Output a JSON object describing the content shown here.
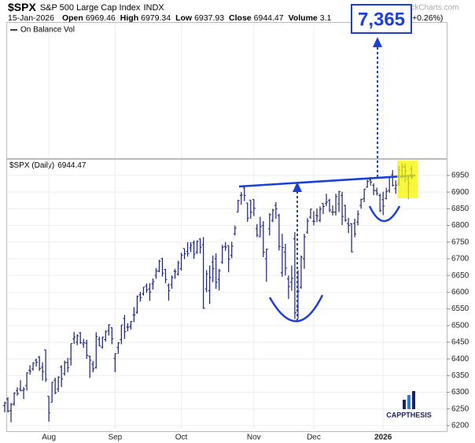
{
  "chart_data": {
    "type": "ohlc",
    "title": "$SPX",
    "subtitle": "S&P 500 Large Cap Index",
    "exchange": "INDX",
    "date": "15-Jan-2026",
    "quote_labels": [
      "Open",
      "High",
      "Low",
      "Close",
      "Volume"
    ],
    "volume": "3.1",
    "change": "+0.26%)",
    "watermark": "©StockCharts.com",
    "indicator": "On Balance Vol",
    "series_name": "$SPX (Daily)",
    "annotation": "7,365",
    "logo": "CAPPTHESIS",
    "color": "#1b2266",
    "ylim": [
      6181,
      6997
    ],
    "yticks": [
      6200,
      6250,
      6300,
      6350,
      6400,
      6450,
      6500,
      6550,
      6600,
      6650,
      6700,
      6750,
      6800,
      6850,
      6900,
      6950
    ],
    "grid": true,
    "categories": [
      null,
      null,
      null,
      null,
      null,
      null,
      null,
      null,
      null,
      null,
      null,
      null,
      null,
      null,
      "Aug",
      null,
      null,
      null,
      null,
      null,
      null,
      null,
      null,
      null,
      null,
      null,
      null,
      null,
      null,
      null,
      null,
      null,
      null,
      null,
      null,
      "Sep",
      null,
      null,
      null,
      null,
      null,
      null,
      null,
      null,
      null,
      null,
      null,
      null,
      null,
      null,
      null,
      null,
      null,
      null,
      null,
      null,
      "Oct",
      null,
      null,
      null,
      null,
      null,
      null,
      null,
      null,
      null,
      null,
      null,
      null,
      null,
      null,
      null,
      null,
      null,
      null,
      null,
      null,
      null,
      null,
      "Nov",
      null,
      null,
      null,
      null,
      null,
      null,
      null,
      null,
      null,
      null,
      null,
      null,
      null,
      null,
      null,
      null,
      null,
      null,
      "Dec",
      null,
      null,
      null,
      null,
      null,
      null,
      null,
      null,
      null,
      null,
      null,
      null,
      null,
      null,
      null,
      null,
      null,
      null,
      null,
      null,
      null,
      "2026",
      null,
      null,
      null,
      null,
      null,
      null,
      null,
      null,
      null
    ],
    "values": [
      [
        6260,
        6272,
        6240,
        6268
      ],
      [
        6280,
        6285,
        6240,
        6243
      ],
      [
        6245,
        6268,
        6210,
        6263
      ],
      [
        6265,
        6300,
        6260,
        6297
      ],
      [
        6305,
        6315,
        6290,
        6296
      ],
      [
        6310,
        6336,
        6303,
        6305
      ],
      [
        6306,
        6316,
        6280,
        6309
      ],
      [
        6320,
        6360,
        6305,
        6358
      ],
      [
        6366,
        6381,
        6353,
        6363
      ],
      [
        6370,
        6390,
        6365,
        6388
      ],
      [
        6396,
        6401,
        6377,
        6390
      ],
      [
        6405,
        6409,
        6364,
        6371
      ],
      [
        6375,
        6390,
        6335,
        6362
      ],
      [
        6427,
        6428,
        6331,
        6339
      ],
      [
        6288,
        6288,
        6212,
        6238
      ],
      [
        6270,
        6331,
        6270,
        6330
      ],
      [
        6336,
        6344,
        6294,
        6299
      ],
      [
        6310,
        6348,
        6301,
        6345
      ],
      [
        6376,
        6381,
        6316,
        6340
      ],
      [
        6356,
        6395,
        6350,
        6389
      ],
      [
        6389,
        6403,
        6360,
        6374
      ],
      [
        6400,
        6446,
        6380,
        6446
      ],
      [
        6460,
        6481,
        6445,
        6466
      ],
      [
        6450,
        6474,
        6441,
        6469
      ],
      [
        6478,
        6481,
        6445,
        6449
      ],
      [
        6445,
        6460,
        6433,
        6449
      ],
      [
        6447,
        6457,
        6400,
        6411
      ],
      [
        6408,
        6410,
        6343,
        6396
      ],
      [
        6384,
        6394,
        6360,
        6370
      ],
      [
        6374,
        6480,
        6371,
        6467
      ],
      [
        6459,
        6467,
        6438,
        6439
      ],
      [
        6435,
        6467,
        6431,
        6465
      ],
      [
        6458,
        6486,
        6452,
        6481
      ],
      [
        6485,
        6504,
        6470,
        6502
      ],
      [
        6494,
        6495,
        6444,
        6460
      ],
      [
        6401,
        6417,
        6360,
        6416
      ],
      [
        6434,
        6450,
        6415,
        6448
      ],
      [
        6458,
        6502,
        6444,
        6502
      ],
      [
        6521,
        6532,
        6460,
        6482
      ],
      [
        6496,
        6507,
        6483,
        6495
      ],
      [
        6497,
        6514,
        6488,
        6512
      ],
      [
        6532,
        6555,
        6510,
        6532
      ],
      [
        6540,
        6590,
        6535,
        6587
      ],
      [
        6592,
        6601,
        6572,
        6584
      ],
      [
        6595,
        6616,
        6590,
        6615
      ],
      [
        6619,
        6626,
        6598,
        6607
      ],
      [
        6610,
        6627,
        6574,
        6600
      ],
      [
        6625,
        6641,
        6608,
        6632
      ],
      [
        6650,
        6672,
        6640,
        6664
      ],
      [
        6663,
        6697,
        6660,
        6693
      ],
      [
        6700,
        6703,
        6647,
        6657
      ],
      [
        6668,
        6670,
        6627,
        6638
      ],
      [
        6620,
        6626,
        6575,
        6605
      ],
      [
        6622,
        6650,
        6610,
        6644
      ],
      [
        6663,
        6670,
        6640,
        6661
      ],
      [
        6654,
        6694,
        6650,
        6688
      ],
      [
        6670,
        6718,
        6665,
        6711
      ],
      [
        6731,
        6731,
        6699,
        6715
      ],
      [
        6722,
        6750,
        6707,
        6716
      ],
      [
        6733,
        6750,
        6720,
        6740
      ],
      [
        6748,
        6755,
        6700,
        6714
      ],
      [
        6720,
        6755,
        6715,
        6753
      ],
      [
        6759,
        6762,
        6716,
        6735
      ],
      [
        6742,
        6765,
        6550,
        6552
      ],
      [
        6610,
        6666,
        6600,
        6655
      ],
      [
        6604,
        6680,
        6565,
        6644
      ],
      [
        6690,
        6710,
        6630,
        6671
      ],
      [
        6700,
        6716,
        6610,
        6630
      ],
      [
        6638,
        6670,
        6605,
        6664
      ],
      [
        6690,
        6742,
        6685,
        6735
      ],
      [
        6737,
        6750,
        6724,
        6735
      ],
      [
        6740,
        6740,
        6660,
        6699
      ],
      [
        6711,
        6751,
        6702,
        6738
      ],
      [
        6775,
        6800,
        6770,
        6792
      ],
      [
        6840,
        6877,
        6840,
        6875
      ],
      [
        6890,
        6900,
        6862,
        6891
      ],
      [
        6912,
        6920,
        6873,
        6890
      ],
      [
        6867,
        6868,
        6811,
        6822
      ],
      [
        6876,
        6876,
        6820,
        6840
      ],
      [
        6878,
        6878,
        6828,
        6852
      ],
      [
        6790,
        6804,
        6765,
        6771
      ],
      [
        6766,
        6826,
        6765,
        6796
      ],
      [
        6800,
        6813,
        6705,
        6720
      ],
      [
        6700,
        6730,
        6631,
        6729
      ],
      [
        6790,
        6837,
        6770,
        6832
      ],
      [
        6815,
        6850,
        6810,
        6846
      ],
      [
        6860,
        6870,
        6820,
        6850
      ],
      [
        6830,
        6835,
        6725,
        6737
      ],
      [
        6658,
        6775,
        6646,
        6734
      ],
      [
        6720,
        6745,
        6650,
        6672
      ],
      [
        6640,
        6650,
        6580,
        6617
      ],
      [
        6630,
        6680,
        6604,
        6642
      ],
      [
        6760,
        6780,
        6520,
        6538
      ],
      [
        6555,
        6666,
        6521,
        6603
      ],
      [
        6615,
        6710,
        6610,
        6705
      ],
      [
        6700,
        6775,
        6670,
        6766
      ],
      [
        6780,
        6822,
        6775,
        6813
      ],
      [
        6825,
        6850,
        6820,
        6849
      ],
      [
        6813,
        6843,
        6800,
        6812
      ],
      [
        6830,
        6851,
        6810,
        6829
      ],
      [
        6815,
        6857,
        6810,
        6849
      ],
      [
        6866,
        6866,
        6834,
        6857
      ],
      [
        6866,
        6895,
        6858,
        6870
      ],
      [
        6875,
        6880,
        6840,
        6846
      ],
      [
        6840,
        6860,
        6830,
        6840
      ],
      [
        6840,
        6895,
        6830,
        6886
      ],
      [
        6865,
        6904,
        6840,
        6901
      ],
      [
        6890,
        6901,
        6801,
        6827
      ],
      [
        6860,
        6862,
        6811,
        6816
      ],
      [
        6805,
        6823,
        6777,
        6800
      ],
      [
        6805,
        6807,
        6719,
        6721
      ],
      [
        6806,
        6820,
        6765,
        6775
      ],
      [
        6810,
        6845,
        6800,
        6834
      ],
      [
        6860,
        6880,
        6850,
        6878
      ],
      [
        6880,
        6910,
        6870,
        6909
      ],
      [
        6915,
        6937,
        6913,
        6932
      ],
      [
        6936,
        6945,
        6920,
        6930
      ],
      [
        6920,
        6926,
        6891,
        6905
      ],
      [
        6904,
        6913,
        6890,
        6896
      ],
      [
        6890,
        6895,
        6840,
        6845
      ],
      [
        6877,
        6901,
        6831,
        6858
      ],
      [
        6881,
        6913,
        6878,
        6902
      ],
      [
        6905,
        6945,
        6898,
        6944
      ],
      [
        6952,
        6966,
        6917,
        6920
      ],
      [
        6910,
        6935,
        6895,
        6921
      ],
      [
        6925,
        6978,
        6920,
        6966
      ],
      [
        6945,
        6986,
        6941,
        6977
      ],
      [
        6975,
        6985,
        6930,
        6964
      ],
      [
        6940,
        6950,
        6880,
        6926
      ],
      [
        6969.46,
        6979.34,
        6937.93,
        6944.47
      ]
    ]
  }
}
